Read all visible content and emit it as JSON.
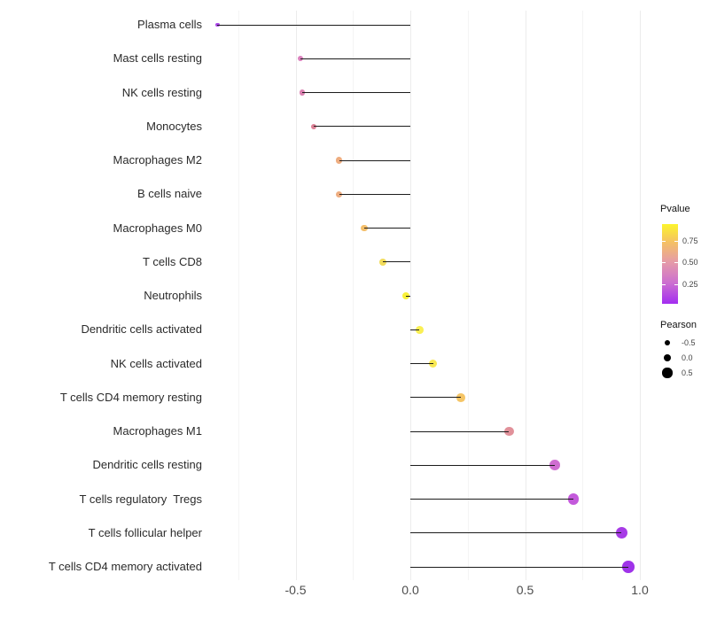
{
  "chart_data": {
    "type": "lollipop",
    "title": "",
    "xlabel": "",
    "ylabel": "",
    "x_ticks": [
      -0.5,
      0.0,
      0.5,
      1.0
    ],
    "x_tick_labels": [
      "-0.5",
      "0.0",
      "0.5",
      "1.0"
    ],
    "xlim": [
      -0.87,
      1.05
    ],
    "gridlines_major": [
      -0.5,
      0.0,
      0.5,
      1.0
    ],
    "gridlines_minor": [
      -0.75,
      -0.25,
      0.25,
      0.75
    ],
    "grid_on": true,
    "categories": [
      "Plasma cells",
      "Mast cells resting",
      "NK cells resting",
      "Monocytes",
      "Macrophages M2",
      "B cells naive",
      "Macrophages M0",
      "T cells CD8",
      "Neutrophils",
      "Dendritic cells activated",
      "NK cells activated",
      "T cells CD4 memory resting",
      "Macrophages M1",
      "Dendritic cells resting",
      "T cells regulatory  Tregs",
      "T cells follicular helper",
      "T cells CD4 memory activated"
    ],
    "series": [
      {
        "name": "Pearson",
        "values": [
          -0.84,
          -0.48,
          -0.47,
          -0.42,
          -0.31,
          -0.31,
          -0.2,
          -0.12,
          -0.02,
          0.04,
          0.1,
          0.22,
          0.43,
          0.63,
          0.71,
          0.92,
          0.95
        ]
      }
    ],
    "point_colors": [
      "#a22fe8",
      "#d66fb4",
      "#d66fa6",
      "#d76f88",
      "#eca26e",
      "#eca26e",
      "#f2b656",
      "#f0d743",
      "#f8ef1e",
      "#f9ed3c",
      "#f7e53a",
      "#f4bd51",
      "#dd828c",
      "#c859cb",
      "#bb42d6",
      "#9b20e2",
      "#9217e6"
    ],
    "stick_color": "#1c1c1c",
    "legend": {
      "position": "right",
      "color": {
        "title": "Pvalue",
        "tick_labels": [
          "0.75",
          "0.50",
          "0.25"
        ],
        "gradient_top_to_bottom": [
          "#fcf42c",
          "#f5c262",
          "#e59aa9",
          "#cc6fd0",
          "#a32df0"
        ]
      },
      "size": {
        "title": "Pearson",
        "tick_labels": [
          "-0.5",
          "0.0",
          "0.5"
        ],
        "tick_values": [
          -0.5,
          0.0,
          0.5
        ]
      }
    }
  }
}
